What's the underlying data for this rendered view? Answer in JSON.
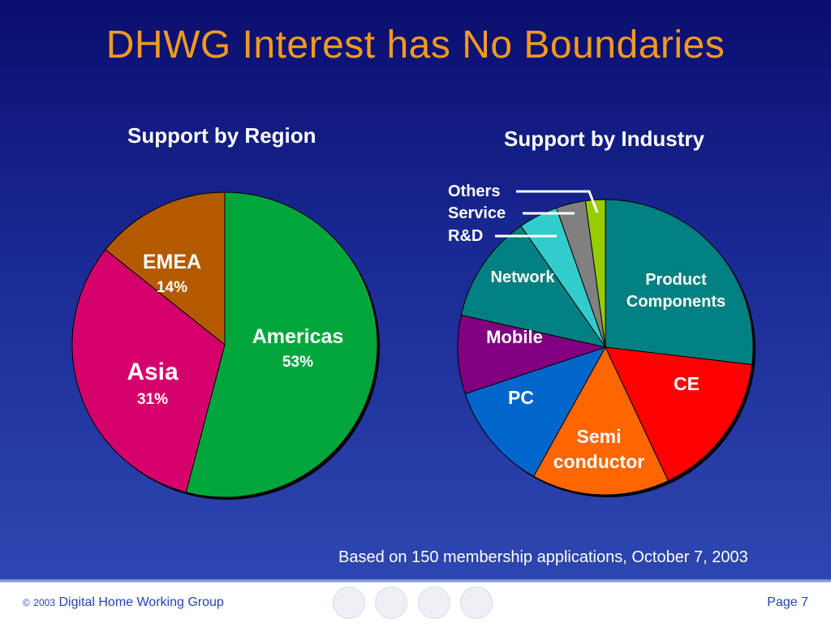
{
  "slide": {
    "title": "DHWG Interest has No Boundaries",
    "note": "Based on 150 membership applications, October 7, 2003",
    "footer": {
      "copyright_symbol": "©",
      "year": "2003",
      "org": "Digital Home Working Group",
      "page": "Page 7"
    },
    "footer_icons": [
      "pda-icon",
      "phone-icon",
      "network-icon",
      "mobile-device-icon"
    ],
    "title_color": "#f39a1e"
  },
  "chart_data": [
    {
      "type": "pie",
      "title": "Support by Region",
      "categories": [
        "Americas",
        "Asia",
        "EMEA"
      ],
      "values": [
        53,
        31,
        14
      ],
      "value_labels": [
        "53%",
        "31%",
        "14%"
      ],
      "colors": [
        "#00a63c",
        "#d4006b",
        "#b35a00"
      ]
    },
    {
      "type": "pie",
      "title": "Support by Industry",
      "categories": [
        "Product Components",
        "CE",
        "Semi conductor",
        "PC",
        "Mobile",
        "Network",
        "R&D",
        "Service",
        "Others"
      ],
      "values": [
        25,
        15,
        14,
        11,
        8,
        11,
        4,
        3,
        2
      ],
      "colors": [
        "#008080",
        "#ff0000",
        "#ff6600",
        "#0066cc",
        "#800080",
        "#008080",
        "#33cccc",
        "#808080",
        "#99cc00"
      ]
    }
  ]
}
